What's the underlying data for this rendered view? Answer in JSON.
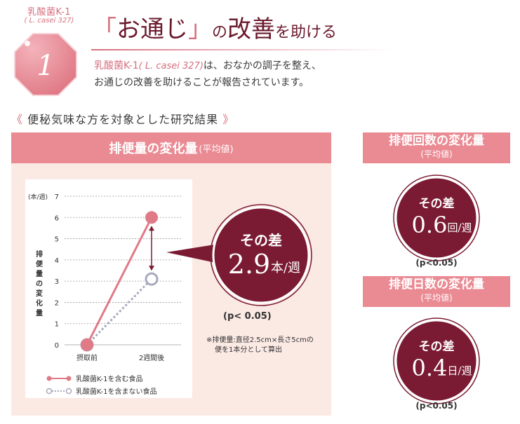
{
  "tag": {
    "line1": "乳酸菌K-1",
    "line2": "( L. casei 327)"
  },
  "badge": {
    "number": "1"
  },
  "title": {
    "open": "「",
    "word": "お通じ",
    "close": "」",
    "part2": "の",
    "word2": "改善",
    "part3": "を助ける"
  },
  "description": {
    "line1_pink": "乳酸菌K-1",
    "line1_italic": "( L. casei 327)",
    "line1_rest": "は、おなかの調子を整え、",
    "line2": "お通じの改善を助けることが報告されています。"
  },
  "study_title": {
    "left": "《",
    "text": "便秘気味な方を対象とした研究結果",
    "right": "》"
  },
  "main_panel": {
    "title": "排便量の変化量",
    "subtitle": "(平均値)"
  },
  "chart_data": {
    "type": "line",
    "title": "排便量の変化量(平均値)",
    "ylabel": "排便量の変化量",
    "yunit": "(本/週)",
    "ylim": [
      0,
      7
    ],
    "yticks": [
      0,
      1,
      2,
      3,
      4,
      5,
      6,
      7
    ],
    "categories": [
      "摂取前",
      "2週間後"
    ],
    "series": [
      {
        "name": "乳酸菌K-1を含む食品",
        "values": [
          0,
          6
        ],
        "color": "#e07a86",
        "marker": "filled"
      },
      {
        "name": "乳酸菌K-1を含まない食品",
        "values": [
          0,
          3.1
        ],
        "color": "#a7aabf",
        "marker": "hollow",
        "dashed": true
      }
    ],
    "grid": true,
    "legend": "bottom"
  },
  "callout": {
    "label": "その差",
    "value": "2.9",
    "unit": "本/週"
  },
  "main_pval": "(p< 0.05)",
  "note": {
    "line1": "※排便量:直径2.5cm×長さ5cmの",
    "line2": "便を1本分として算出"
  },
  "right_panels": [
    {
      "title": "排便回数の変化量",
      "subtitle": "(平均値)",
      "label": "その差",
      "value": "0.6",
      "unit": "回/週",
      "pval": "(p<0.05)"
    },
    {
      "title": "排便日数の変化量",
      "subtitle": "(平均値)",
      "label": "その差",
      "value": "0.4",
      "unit": "日/週",
      "pval": "(p<0.05)"
    }
  ],
  "colors": {
    "accent_pink": "#ea8a93",
    "deep_red": "#7a1b33",
    "panel_bg": "#fbe9e4",
    "line_pink": "#e07a86",
    "line_gray": "#a7aabf"
  }
}
